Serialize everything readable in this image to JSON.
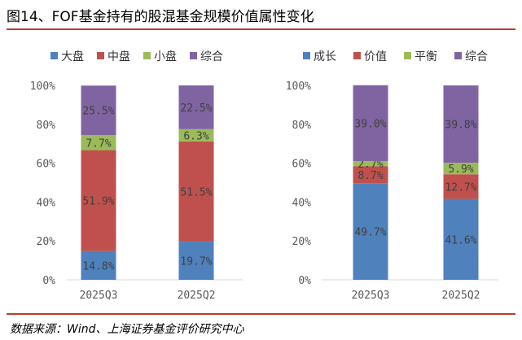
{
  "figure": {
    "title": "图14、FOF基金持有的股混基金规模价值属性变化",
    "source": "数据来源：Wind、上海证券基金评价研究中心",
    "rule_color": "#c0392b"
  },
  "chart_data": [
    {
      "type": "bar",
      "stacked": true,
      "percent": true,
      "categories": [
        "2025Q3",
        "2025Q2"
      ],
      "series": [
        {
          "name": "大盘",
          "color": "#4f81bd",
          "values": [
            14.8,
            19.7
          ],
          "labels": [
            "14.8%",
            "19.7%"
          ]
        },
        {
          "name": "中盘",
          "color": "#c0504d",
          "values": [
            51.9,
            51.5
          ],
          "labels": [
            "51.9%",
            "51.5%"
          ]
        },
        {
          "name": "小盘",
          "color": "#9bbb59",
          "values": [
            7.7,
            6.3
          ],
          "labels": [
            "7.7%",
            "6.3%"
          ]
        },
        {
          "name": "综合",
          "color": "#8064a2",
          "values": [
            25.5,
            22.5
          ],
          "labels": [
            "25.5%",
            "22.5%"
          ]
        }
      ],
      "ylim": [
        0,
        100
      ],
      "yticks": [
        "0%",
        "20%",
        "40%",
        "60%",
        "80%",
        "100%"
      ],
      "legend": "top"
    },
    {
      "type": "bar",
      "stacked": true,
      "percent": true,
      "categories": [
        "2025Q3",
        "2025Q2"
      ],
      "series": [
        {
          "name": "成长",
          "color": "#4f81bd",
          "values": [
            49.7,
            41.6
          ],
          "labels": [
            "49.7%",
            "41.6%"
          ]
        },
        {
          "name": "价值",
          "color": "#c0504d",
          "values": [
            8.7,
            12.7
          ],
          "labels": [
            "8.7%",
            "12.7%"
          ]
        },
        {
          "name": "平衡",
          "color": "#9bbb59",
          "values": [
            2.7,
            5.9
          ],
          "labels": [
            "2.7%",
            "5.9%"
          ]
        },
        {
          "name": "综合",
          "color": "#8064a2",
          "values": [
            39.0,
            39.8
          ],
          "labels": [
            "39.0%",
            "39.8%"
          ]
        }
      ],
      "ylim": [
        0,
        100
      ],
      "yticks": [
        "0%",
        "20%",
        "40%",
        "60%",
        "80%",
        "100%"
      ],
      "legend": "top"
    }
  ]
}
